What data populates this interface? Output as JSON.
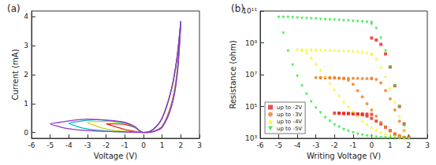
{
  "chart_data": [
    {
      "type": "line",
      "title": "(a)",
      "x_label": "Voltage (V)",
      "y_label": "Current (mA)",
      "xlim": [
        -6,
        3
      ],
      "xticks": [
        -6,
        -5,
        -4,
        -3,
        -2,
        -1,
        0,
        1,
        2,
        3
      ],
      "ylim": [
        -0.2,
        4.2
      ],
      "yticks": [
        0,
        1,
        2,
        3,
        4
      ],
      "grid": false,
      "line_style": "solid",
      "series": [
        {
          "color": "#e8261e",
          "x": [
            0,
            0.5,
            1,
            1.5,
            1.8,
            2,
            1.8,
            1.5,
            1,
            0.5,
            0,
            -0.5,
            -1,
            -1.5,
            -2,
            -1.5,
            -1,
            -0.5,
            0
          ],
          "values": [
            0,
            0.03,
            0.22,
            1.0,
            2.1,
            3.85,
            2.6,
            1.5,
            0.5,
            0.1,
            0,
            0.18,
            0.28,
            0.3,
            0.3,
            0.2,
            0.1,
            0.04,
            0
          ]
        },
        {
          "color": "#c8d400",
          "x": [
            0,
            0.5,
            1,
            1.5,
            1.8,
            2,
            1.8,
            1.5,
            1,
            0.5,
            0,
            -0.5,
            -1,
            -1.5,
            -2,
            -2.5,
            -3,
            -2.5,
            -2,
            -1.5,
            -1,
            -0.5,
            0
          ],
          "values": [
            0,
            0.03,
            0.2,
            0.95,
            2.05,
            3.85,
            2.6,
            1.5,
            0.5,
            0.1,
            0,
            0.2,
            0.32,
            0.36,
            0.38,
            0.38,
            0.35,
            0.22,
            0.12,
            0.07,
            0.04,
            0.02,
            0
          ]
        },
        {
          "color": "#00b8c8",
          "x": [
            0,
            0.5,
            1,
            1.5,
            1.8,
            2,
            1.8,
            1.5,
            1,
            0.5,
            0,
            -0.5,
            -1,
            -1.5,
            -2,
            -2.5,
            -3,
            -3.5,
            -4,
            -3.5,
            -3,
            -2.5,
            -2,
            -1.5,
            -1,
            -0.5,
            0
          ],
          "values": [
            0,
            0.03,
            0.2,
            0.92,
            2.0,
            3.85,
            2.6,
            1.5,
            0.5,
            0.1,
            0,
            0.2,
            0.33,
            0.38,
            0.42,
            0.44,
            0.42,
            0.38,
            0.32,
            0.2,
            0.12,
            0.08,
            0.05,
            0.03,
            0.02,
            0.01,
            0
          ]
        },
        {
          "color": "#9b30c8",
          "x": [
            0,
            0.5,
            1,
            1.5,
            1.8,
            2,
            1.8,
            1.5,
            1,
            0.5,
            0,
            -0.5,
            -1,
            -1.5,
            -2,
            -2.5,
            -3,
            -3.5,
            -4,
            -4.5,
            -5,
            -4.5,
            -4,
            -3.5,
            -3,
            -2.5,
            -2,
            -1.5,
            -1,
            -0.5,
            0
          ],
          "values": [
            0,
            0.03,
            0.18,
            0.9,
            1.95,
            3.85,
            2.6,
            1.5,
            0.5,
            0.1,
            0,
            0.22,
            0.35,
            0.4,
            0.43,
            0.45,
            0.46,
            0.44,
            0.4,
            0.35,
            0.3,
            0.2,
            0.13,
            0.09,
            0.07,
            0.05,
            0.04,
            0.03,
            0.02,
            0.01,
            0
          ]
        }
      ]
    },
    {
      "type": "scatter",
      "title": "(b)",
      "x_label": "Writing Voltage (V)",
      "y_label": "Resistance (ohm)",
      "log": "y",
      "grid": false,
      "legend": "lower left",
      "xlim": [
        -6,
        3
      ],
      "xticks": [
        -6,
        -5,
        -4,
        -3,
        -2,
        -1,
        0,
        1,
        2,
        3
      ],
      "ylim": [
        1000,
        100000000000
      ],
      "yticks": [
        {
          "value": 1000,
          "label": "10³"
        },
        {
          "value": 100000,
          "label": "10⁵"
        },
        {
          "value": 10000000,
          "label": "10⁷"
        },
        {
          "value": 1000000000,
          "label": "10⁹"
        },
        {
          "value": 100000000000,
          "label": "10¹¹"
        }
      ],
      "series": [
        {
          "name": "up to -2V",
          "color": "#e8261e",
          "marker": "square",
          "x": [
            0,
            0.25,
            0.5,
            0.75,
            1,
            1.25,
            1.5,
            1.75,
            2,
            1.75,
            1.5,
            1.25,
            1,
            0.75,
            0.5,
            0.25,
            0,
            -0.25,
            -0.5,
            -0.75,
            -1,
            -1.25,
            -1.5,
            -1.75,
            -2,
            -1.75,
            -1.5,
            -1.25,
            -1,
            -0.75,
            -0.5,
            -0.25,
            0
          ],
          "values": [
            2000000000.0,
            1500000000.0,
            800000000.0,
            200000000.0,
            30000000.0,
            2000000.0,
            100000.0,
            8000.0,
            1200.0,
            1100.0,
            1300.0,
            1800.0,
            3000.0,
            5000.0,
            8000.0,
            12000.0,
            18000.0,
            25000.0,
            30000.0,
            33000.0,
            35000.0,
            36000.0,
            37000.0,
            38000.0,
            38000.0,
            37000.0,
            36000.0,
            36000.0,
            35000.0,
            34000.0,
            34000.0,
            33000.0,
            32000.0
          ]
        },
        {
          "name": "up to -3V",
          "color": "#f07d1a",
          "marker": "circle",
          "x": [
            0,
            0.25,
            0.5,
            0.75,
            1,
            1.25,
            1.5,
            1.75,
            2,
            1.75,
            1.5,
            1.25,
            1,
            0.75,
            0.5,
            0.25,
            0,
            -0.25,
            -0.5,
            -0.75,
            -1,
            -1.25,
            -1.5,
            -1.75,
            -2,
            -2.25,
            -2.5,
            -2.75,
            -3,
            -2.75,
            -2.5,
            -2.25,
            -2,
            -1.75,
            -1.5,
            -1.25,
            -1,
            -0.75,
            -0.5,
            -0.25,
            0
          ],
          "values": [
            6000000.0,
            5000000.0,
            3000000.0,
            1000000.0,
            300000.0,
            60000.0,
            12000.0,
            3000.0,
            1100.0,
            1200.0,
            1500.0,
            2000.0,
            3000.0,
            5000.0,
            10000.0,
            25000.0,
            60000.0,
            150000.0,
            400000.0,
            1000000.0,
            2500000.0,
            4500000.0,
            5500000.0,
            6000000.0,
            6500000.0,
            6500000.0,
            6500000.0,
            6500000.0,
            6500000.0,
            6400000.0,
            6300000.0,
            6200000.0,
            6100000.0,
            6000000.0,
            6000000.0,
            5900000.0,
            5800000.0,
            5800000.0,
            5700000.0,
            5600000.0,
            5500000.0
          ]
        },
        {
          "name": "up to -4V",
          "color": "#f5f01e",
          "marker": "triangle",
          "x": [
            0,
            0.25,
            0.5,
            0.75,
            1,
            1.25,
            1.5,
            1.75,
            2,
            1.75,
            1.5,
            1.25,
            1,
            0.75,
            0.5,
            0.25,
            0,
            -0.25,
            -0.5,
            -0.75,
            -1,
            -1.25,
            -1.5,
            -1.75,
            -2,
            -2.25,
            -2.5,
            -2.75,
            -3,
            -3.25,
            -3.5,
            -3.75,
            -4,
            -3.75,
            -3.5,
            -3.25,
            -3,
            -2.75,
            -2.5,
            -2.25,
            -2,
            -1.75,
            -1.5,
            -1.25,
            -1,
            -0.75,
            -0.5,
            -0.25,
            0
          ],
          "values": [
            200000000.0,
            100000000.0,
            30000000.0,
            8000000.0,
            1500000.0,
            200000.0,
            25000.0,
            3000.0,
            1000.0,
            1100.0,
            1200.0,
            1400.0,
            1600.0,
            2000.0,
            2500.0,
            3500.0,
            5000.0,
            8000.0,
            13000.0,
            25000.0,
            50000.0,
            100000.0,
            200000.0,
            500000.0,
            1200000.0,
            3000000.0,
            8000000.0,
            20000000.0,
            50000000.0,
            120000000.0,
            250000000.0,
            350000000.0,
            400000000.0,
            400000000.0,
            390000000.0,
            380000000.0,
            380000000.0,
            370000000.0,
            360000000.0,
            350000000.0,
            350000000.0,
            340000000.0,
            330000000.0,
            320000000.0,
            310000000.0,
            300000000.0,
            280000000.0,
            250000000.0,
            220000000.0
          ]
        },
        {
          "name": "up to -5V",
          "color": "#28e63c",
          "marker": "triangle-down",
          "x": [
            0,
            0.25,
            0.5,
            0.75,
            1,
            1.25,
            1.5,
            1.75,
            2,
            1.75,
            1.5,
            1.25,
            1,
            0.75,
            0.5,
            0.25,
            0,
            -0.25,
            -0.5,
            -0.75,
            -1,
            -1.25,
            -1.5,
            -1.75,
            -2,
            -2.25,
            -2.5,
            -2.75,
            -3,
            -3.25,
            -3.5,
            -3.75,
            -4,
            -4.25,
            -4.5,
            -4.75,
            -5,
            -4.75,
            -4.5,
            -4.25,
            -4,
            -3.75,
            -3.5,
            -3.25,
            -3,
            -2.75,
            -2.5,
            -2.25,
            -2,
            -1.75,
            -1.5,
            -1.25,
            -1,
            -0.75,
            -0.5,
            -0.25,
            0
          ],
          "values": [
            15000000000.0,
            8000000000.0,
            2000000000.0,
            300000000.0,
            30000000.0,
            2000000.0,
            100000.0,
            6000.0,
            1000.0,
            1000.0,
            1000.0,
            1000.0,
            1000.0,
            1100.0,
            1100.0,
            1200.0,
            1300.0,
            1400.0,
            1600.0,
            1800.0,
            2200.0,
            2800.0,
            3500.0,
            5000.0,
            7000.0,
            12000.0,
            20000.0,
            40000.0,
            80000.0,
            200000.0,
            600000.0,
            2000000.0,
            8000000.0,
            40000000.0,
            300000000.0,
            4000000000.0,
            40000000000.0,
            40000000000.0,
            40000000000.0,
            38000000000.0,
            37000000000.0,
            35000000000.0,
            34000000000.0,
            33000000000.0,
            32000000000.0,
            30000000000.0,
            29000000000.0,
            28000000000.0,
            27000000000.0,
            26000000000.0,
            25000000000.0,
            24000000000.0,
            23000000000.0,
            22000000000.0,
            21000000000.0,
            20000000000.0,
            19000000000.0
          ]
        }
      ]
    }
  ]
}
